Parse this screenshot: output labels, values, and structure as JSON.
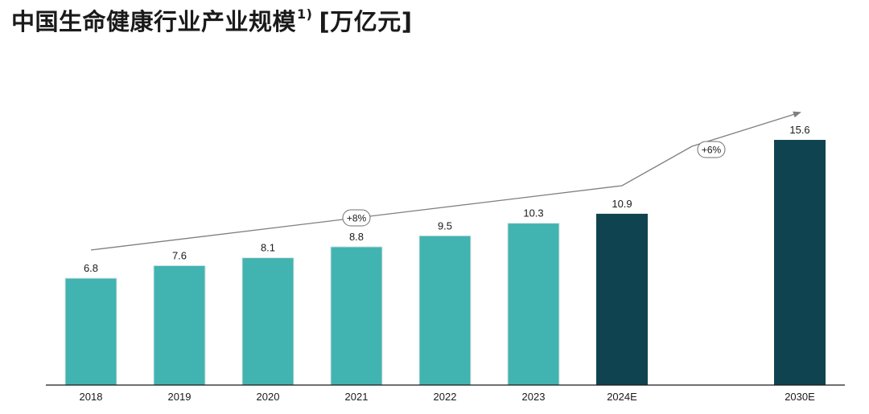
{
  "title": {
    "main": "中国生命健康行业产业规模",
    "footnote": "1)",
    "unit": "[万亿元]"
  },
  "colors": {
    "actual": "#41b3b0",
    "forecast": "#0f434f",
    "axis": "#1a1a1a",
    "trend": "#7f7f7f"
  },
  "chart_data": {
    "type": "bar",
    "title": "中国生命健康行业产业规模 [万亿元]",
    "xlabel": "",
    "ylabel": "万亿元",
    "ylim": [
      0,
      16
    ],
    "categories": [
      "2018",
      "2019",
      "2020",
      "2021",
      "2022",
      "2023",
      "2024E",
      "2030E"
    ],
    "values": [
      6.8,
      7.6,
      8.1,
      8.8,
      9.5,
      10.3,
      10.9,
      15.6
    ],
    "value_labels": [
      "6.8",
      "7.6",
      "8.1",
      "8.8",
      "9.5",
      "10.3",
      "10.9",
      "15.6"
    ],
    "forecast": [
      false,
      false,
      false,
      false,
      false,
      false,
      true,
      true
    ],
    "annotations": [
      {
        "label": "+8%",
        "from": "2018",
        "to": "2024E"
      },
      {
        "label": "+6%",
        "from": "2024E",
        "to": "2030E"
      }
    ]
  }
}
